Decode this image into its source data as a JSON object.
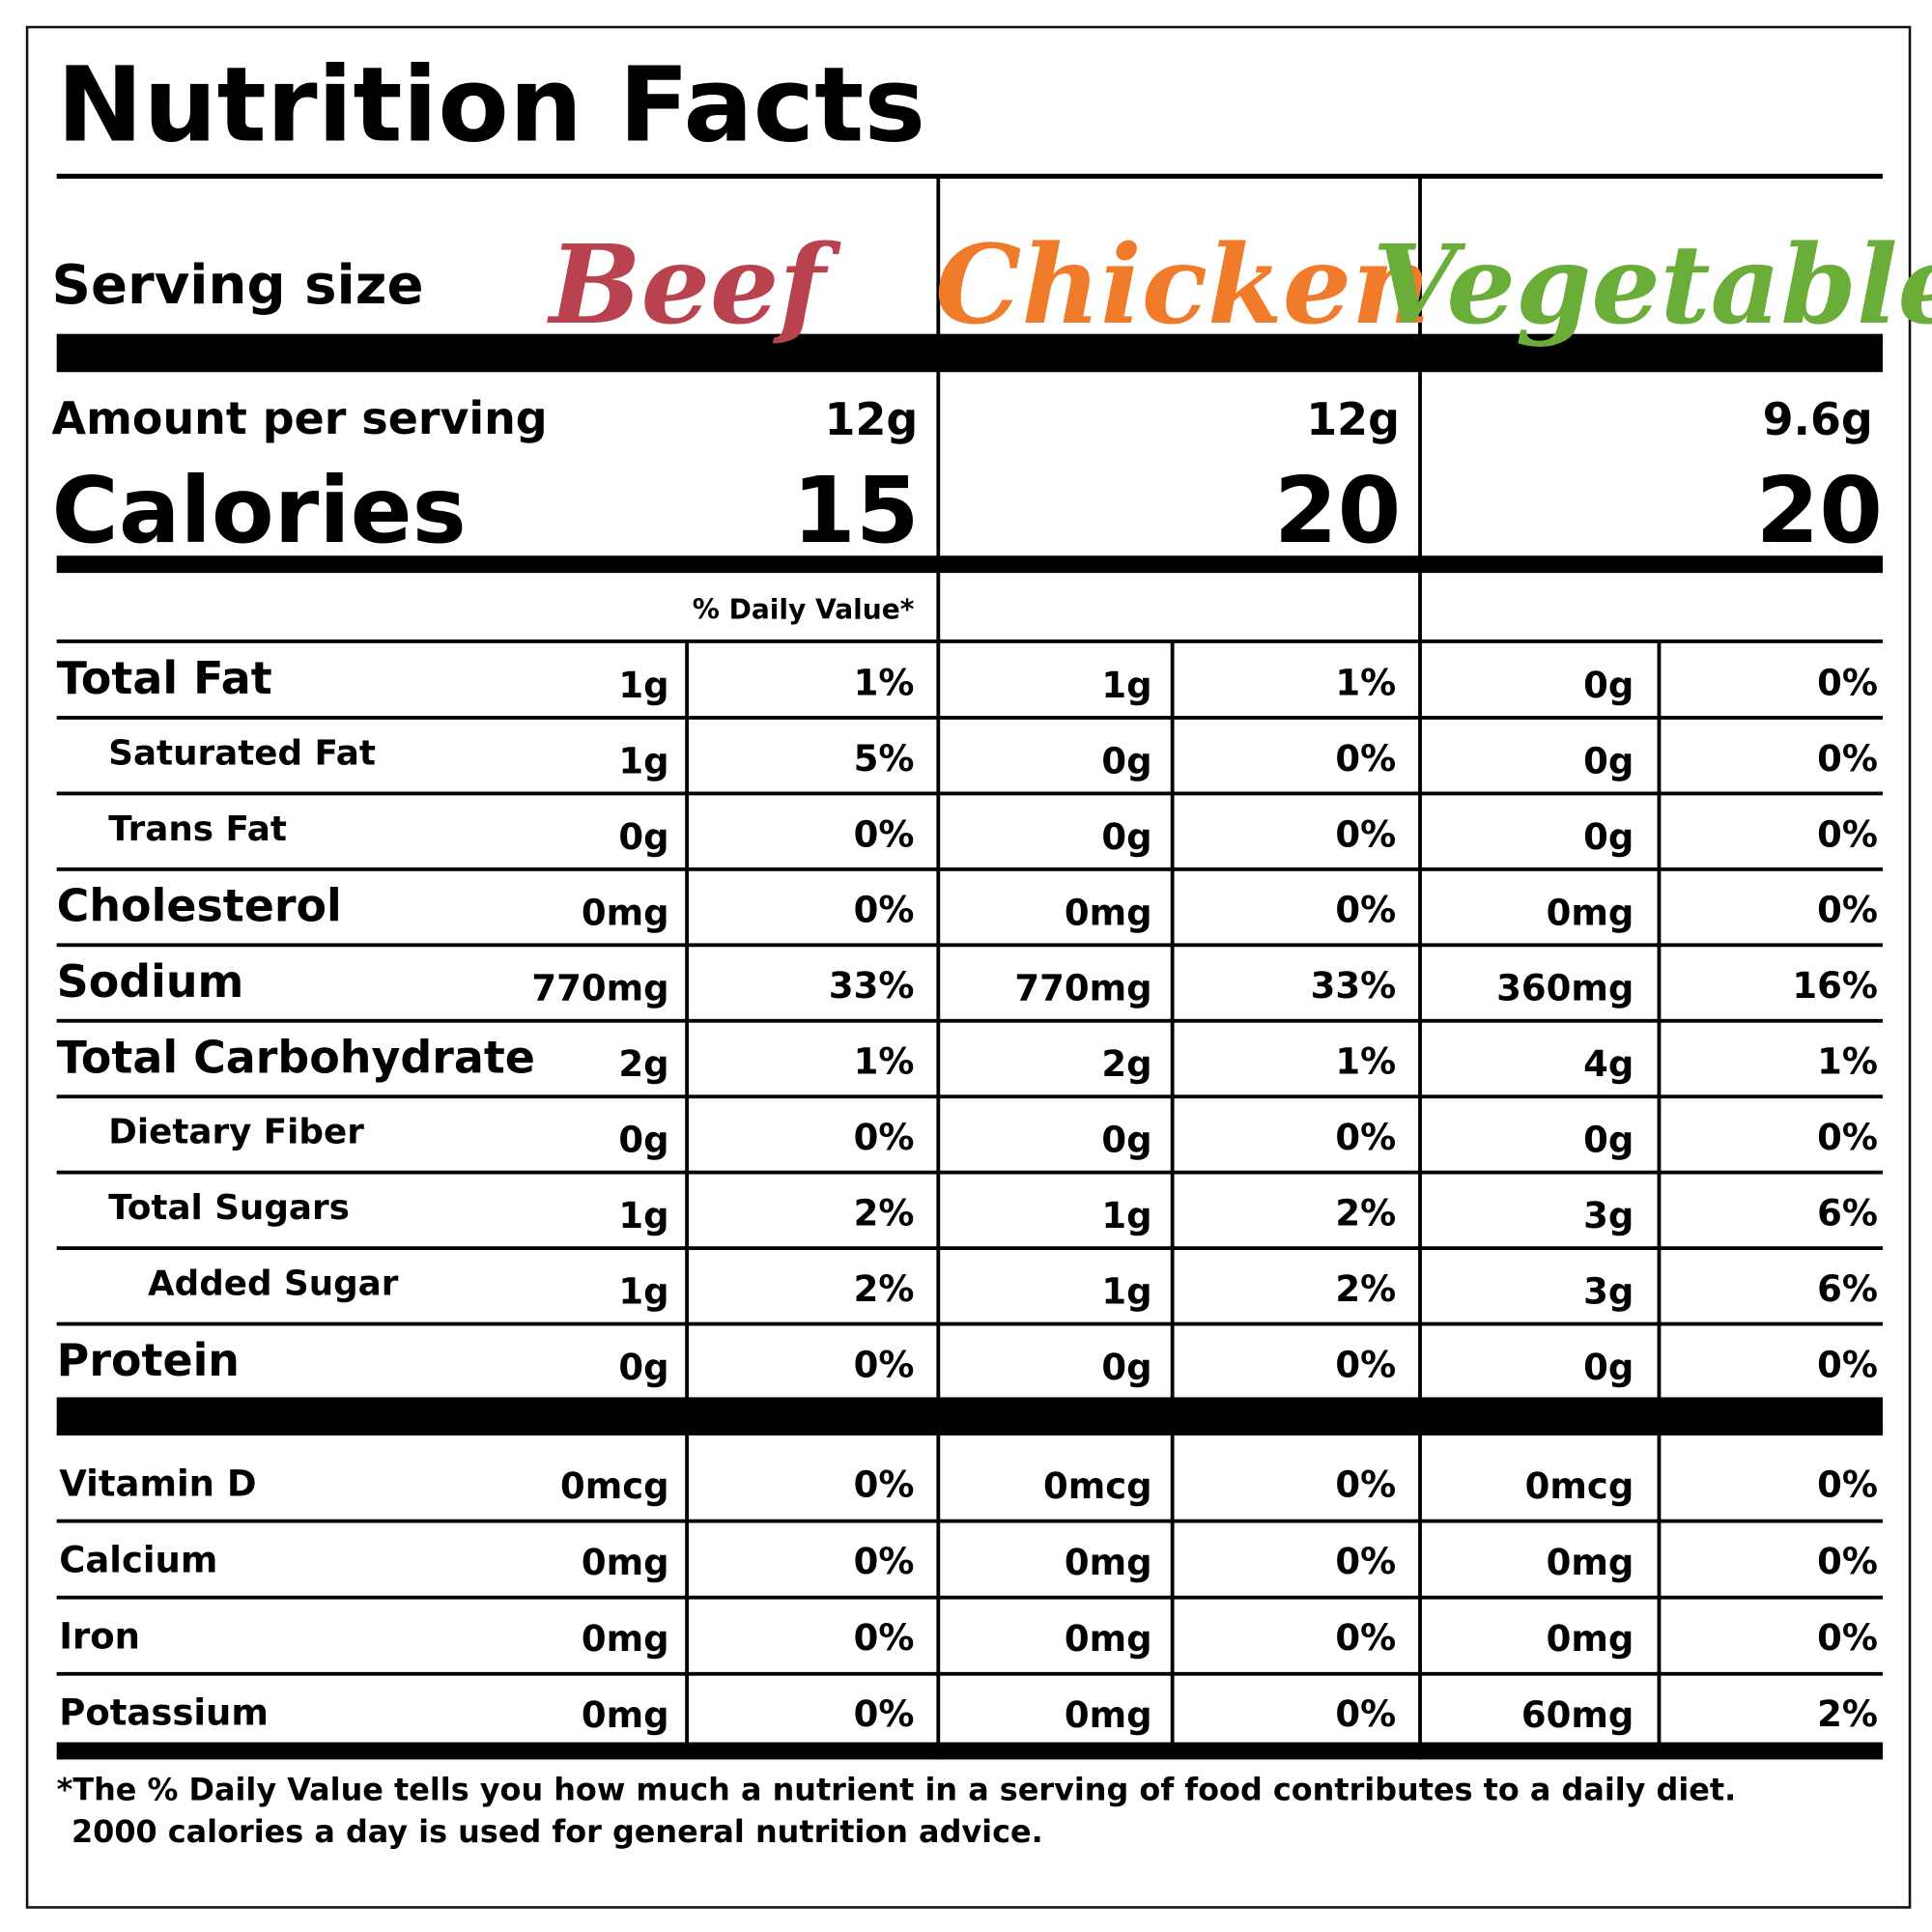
{
  "title": "Nutrition Facts",
  "serving_size_label": "Serving size",
  "amount_per_serving_label": "Amount per serving",
  "calories_label": "Calories",
  "daily_value_header": "% Daily Value*",
  "products": [
    {
      "name": "Beef",
      "color": "#b8434f",
      "serving": "12g",
      "calories": 15
    },
    {
      "name": "Chicken",
      "color": "#ef7b2b",
      "serving": "12g",
      "calories": 20
    },
    {
      "name": "Vegetable",
      "color": "#6aad38",
      "serving": "9.6g",
      "calories": 20
    }
  ],
  "nutrients": [
    {
      "name": "Total Fat",
      "level": 0,
      "values": [
        [
          "1g",
          "1%"
        ],
        [
          "1g",
          "1%"
        ],
        [
          "0g",
          "0%"
        ]
      ]
    },
    {
      "name": "Saturated Fat",
      "level": 1,
      "values": [
        [
          "1g",
          "5%"
        ],
        [
          "0g",
          "0%"
        ],
        [
          "0g",
          "0%"
        ]
      ]
    },
    {
      "name": "Trans Fat",
      "level": 1,
      "values": [
        [
          "0g",
          "0%"
        ],
        [
          "0g",
          "0%"
        ],
        [
          "0g",
          "0%"
        ]
      ]
    },
    {
      "name": "Cholesterol",
      "level": 0,
      "values": [
        [
          "0mg",
          "0%"
        ],
        [
          "0mg",
          "0%"
        ],
        [
          "0mg",
          "0%"
        ]
      ]
    },
    {
      "name": "Sodium",
      "level": 0,
      "values": [
        [
          "770mg",
          "33%"
        ],
        [
          "770mg",
          "33%"
        ],
        [
          "360mg",
          "16%"
        ]
      ]
    },
    {
      "name": "Total Carbohydrate",
      "level": 0,
      "values": [
        [
          "2g",
          "1%"
        ],
        [
          "2g",
          "1%"
        ],
        [
          "4g",
          "1%"
        ]
      ]
    },
    {
      "name": "Dietary Fiber",
      "level": 1,
      "values": [
        [
          "0g",
          "0%"
        ],
        [
          "0g",
          "0%"
        ],
        [
          "0g",
          "0%"
        ]
      ]
    },
    {
      "name": "Total Sugars",
      "level": 1,
      "values": [
        [
          "1g",
          "2%"
        ],
        [
          "1g",
          "2%"
        ],
        [
          "3g",
          "6%"
        ]
      ]
    },
    {
      "name": "Added Sugar",
      "level": 2,
      "values": [
        [
          "1g",
          "2%"
        ],
        [
          "1g",
          "2%"
        ],
        [
          "3g",
          "6%"
        ]
      ]
    },
    {
      "name": "Protein",
      "level": 0,
      "values": [
        [
          "0g",
          "0%"
        ],
        [
          "0g",
          "0%"
        ],
        [
          "0g",
          "0%"
        ]
      ]
    }
  ],
  "minerals": [
    {
      "name": "Vitamin D",
      "values": [
        [
          "0mcg",
          "0%"
        ],
        [
          "0mcg",
          "0%"
        ],
        [
          "0mcg",
          "0%"
        ]
      ]
    },
    {
      "name": "Calcium",
      "values": [
        [
          "0mg",
          "0%"
        ],
        [
          "0mg",
          "0%"
        ],
        [
          "0mg",
          "0%"
        ]
      ]
    },
    {
      "name": "Iron",
      "values": [
        [
          "0mg",
          "0%"
        ],
        [
          "0mg",
          "0%"
        ],
        [
          "0mg",
          "0%"
        ]
      ]
    },
    {
      "name": "Potassium",
      "values": [
        [
          "0mg",
          "0%"
        ],
        [
          "0mg",
          "0%"
        ],
        [
          "60mg",
          "2%"
        ]
      ]
    }
  ],
  "footnote": [
    "*The % Daily Value tells you how much a nutrient in a serving of food contributes to a daily diet.",
    "2000 calories a day is used for general nutrition advice."
  ]
}
